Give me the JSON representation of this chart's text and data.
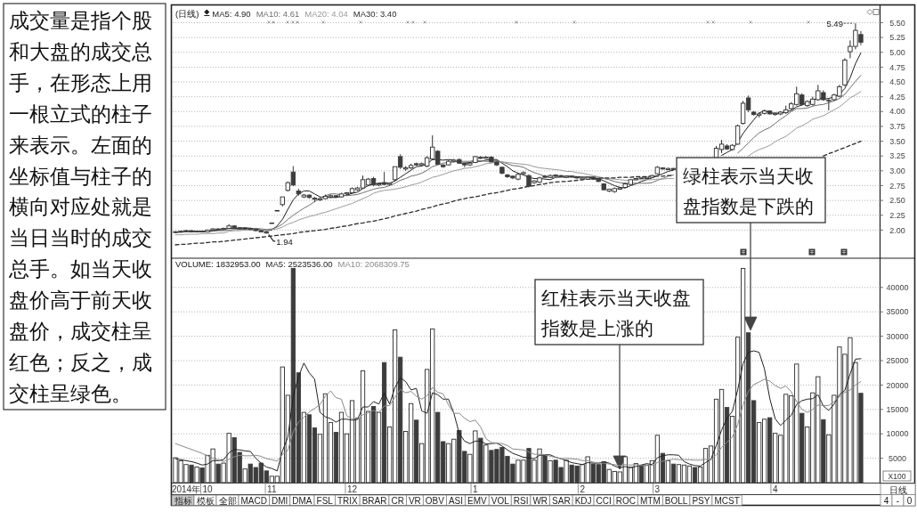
{
  "chart_data": [
    {
      "type": "other",
      "annotations": [
        "成交量是指个股和大盘的成交总手，在形态上用一根立式的柱子来表示。左面的坐标值与柱子的横向对应处就是当日当时的成交总手。如当天收盘价高于前天收盘价，成交柱呈红色；反之，成交柱呈绿色。"
      ]
    },
    {
      "type": "candlestick",
      "title": "(日线)",
      "tick_labels": "y",
      "grid": "y",
      "legend": "top left",
      "ylim": [
        1.54,
        5.8
      ],
      "yticks": [
        {
          "value": 2,
          "label": "2.00"
        },
        2.25,
        {
          "value": 2.5,
          "label": "2.50"
        },
        2.75,
        {
          "value": 3,
          "label": "3.00"
        },
        3.25,
        {
          "value": 3.5,
          "label": "3.50"
        },
        3.75,
        {
          "value": 4,
          "label": "4.00"
        },
        4.25,
        {
          "value": 4.5,
          "label": "4.50"
        },
        4.75,
        {
          "value": 5,
          "label": "5.00"
        },
        5.25,
        {
          "value": 5.5,
          "label": "5.50"
        }
      ],
      "categories": [
        null,
        null,
        null,
        null,
        null,
        null,
        null,
        null,
        null,
        null,
        null,
        null,
        null,
        null,
        null,
        null,
        null,
        null,
        null,
        null,
        null,
        null,
        null,
        null,
        null,
        null,
        null,
        null,
        null,
        null,
        null,
        null,
        null,
        null,
        null,
        null,
        null,
        null,
        null,
        null,
        null,
        null,
        null,
        null,
        null,
        null,
        null,
        null,
        null,
        null,
        null,
        null,
        null,
        null,
        null,
        null,
        null,
        null,
        null,
        null,
        null,
        null,
        null,
        null,
        null,
        null,
        null,
        null,
        null,
        null,
        null,
        null,
        null,
        null,
        null,
        null,
        null,
        null,
        null,
        null,
        null,
        null,
        null,
        null,
        null,
        null,
        null,
        null,
        null,
        null,
        null,
        null,
        null,
        null,
        null,
        null,
        null,
        null,
        null,
        null,
        null,
        null,
        null,
        null,
        null,
        null,
        null,
        null,
        null,
        null,
        null,
        null,
        null,
        null,
        null,
        null,
        null,
        null,
        null,
        null,
        null,
        null,
        null,
        null,
        null,
        null,
        null,
        null,
        null
      ],
      "ohlc": [
        [
          1.96,
          1.98,
          1.95,
          1.97
        ],
        [
          1.97,
          1.99,
          1.96,
          1.98
        ],
        [
          1.98,
          2.0,
          1.97,
          1.99
        ],
        [
          1.99,
          2.0,
          1.96,
          1.97
        ],
        [
          1.97,
          1.99,
          1.96,
          1.98
        ],
        [
          1.98,
          1.99,
          1.96,
          1.97
        ],
        [
          1.97,
          2.01,
          1.97,
          2.0
        ],
        [
          2.0,
          2.03,
          1.99,
          2.02
        ],
        [
          2.02,
          2.03,
          2.0,
          2.01
        ],
        [
          2.01,
          2.04,
          2.0,
          2.03
        ],
        [
          2.03,
          2.1,
          2.02,
          2.07
        ],
        [
          2.07,
          2.08,
          2.03,
          2.04
        ],
        [
          2.04,
          2.05,
          2.01,
          2.02
        ],
        [
          2.02,
          2.04,
          2.01,
          2.03
        ],
        [
          2.03,
          2.04,
          2.0,
          2.01
        ],
        [
          2.01,
          2.02,
          1.98,
          1.99
        ],
        [
          1.99,
          2.0,
          1.96,
          1.97
        ],
        [
          1.97,
          1.98,
          1.94,
          1.95
        ],
        [
          2.12,
          2.12,
          2.12,
          2.12
        ],
        [
          2.33,
          2.33,
          2.33,
          2.33
        ],
        [
          2.43,
          2.56,
          2.4,
          2.56
        ],
        [
          2.67,
          2.82,
          2.65,
          2.8
        ],
        [
          2.98,
          3.08,
          2.74,
          2.76
        ],
        [
          2.66,
          2.7,
          2.58,
          2.61
        ],
        [
          2.56,
          2.61,
          2.54,
          2.59
        ],
        [
          2.59,
          2.6,
          2.53,
          2.55
        ],
        [
          2.54,
          2.56,
          2.47,
          2.52
        ],
        [
          2.51,
          2.55,
          2.49,
          2.53
        ],
        [
          2.53,
          2.6,
          2.52,
          2.57
        ],
        [
          2.56,
          2.6,
          2.54,
          2.58
        ],
        [
          2.58,
          2.59,
          2.54,
          2.56
        ],
        [
          2.56,
          2.63,
          2.55,
          2.61
        ],
        [
          2.61,
          2.64,
          2.59,
          2.63
        ],
        [
          2.63,
          2.72,
          2.62,
          2.7
        ],
        [
          2.68,
          2.73,
          2.66,
          2.71
        ],
        [
          2.71,
          2.92,
          2.7,
          2.85
        ],
        [
          2.76,
          2.88,
          2.74,
          2.86
        ],
        [
          2.87,
          2.9,
          2.74,
          2.76
        ],
        [
          2.76,
          2.8,
          2.74,
          2.78
        ],
        [
          2.8,
          2.98,
          2.76,
          2.77
        ],
        [
          2.77,
          2.8,
          2.75,
          2.79
        ],
        [
          2.85,
          3.07,
          2.82,
          3.07
        ],
        [
          3.24,
          3.28,
          3.03,
          3.06
        ],
        [
          3.03,
          3.08,
          3.0,
          3.05
        ],
        [
          3.05,
          3.12,
          3.03,
          3.09
        ],
        [
          3.12,
          3.14,
          3.08,
          3.1
        ],
        [
          3.1,
          3.14,
          3.08,
          3.12
        ],
        [
          3.08,
          3.25,
          3.06,
          3.22
        ],
        [
          3.2,
          3.6,
          3.18,
          3.4
        ],
        [
          3.33,
          3.35,
          3.1,
          3.11
        ],
        [
          3.1,
          3.11,
          3.05,
          3.07
        ],
        [
          3.1,
          3.18,
          3.09,
          3.16
        ],
        [
          3.16,
          3.2,
          3.14,
          3.18
        ],
        [
          3.19,
          3.21,
          3.12,
          3.13
        ],
        [
          3.13,
          3.14,
          3.06,
          3.1
        ],
        [
          3.1,
          3.15,
          3.08,
          3.13
        ],
        [
          3.14,
          3.25,
          3.13,
          3.24
        ],
        [
          3.23,
          3.25,
          3.2,
          3.21
        ],
        [
          3.21,
          3.25,
          3.2,
          3.23
        ],
        [
          3.23,
          3.25,
          3.14,
          3.15
        ],
        [
          3.15,
          3.16,
          3.08,
          3.1
        ],
        [
          3.06,
          3.07,
          2.94,
          2.96
        ],
        [
          2.93,
          2.95,
          2.88,
          2.9
        ],
        [
          2.91,
          2.92,
          2.86,
          2.88
        ],
        [
          2.86,
          2.95,
          2.84,
          2.94
        ],
        [
          2.95,
          2.99,
          2.94,
          2.97
        ],
        [
          2.92,
          2.94,
          2.72,
          2.74
        ],
        [
          2.8,
          2.84,
          2.78,
          2.83
        ],
        [
          2.81,
          2.9,
          2.8,
          2.88
        ],
        [
          2.91,
          2.93,
          2.88,
          2.89
        ],
        [
          2.89,
          2.94,
          2.88,
          2.92
        ],
        [
          2.93,
          2.94,
          2.9,
          2.91
        ],
        [
          2.92,
          2.93,
          2.9,
          2.91
        ],
        [
          2.89,
          2.92,
          2.88,
          2.91
        ],
        [
          2.91,
          2.92,
          2.89,
          2.9
        ],
        [
          2.9,
          2.91,
          2.87,
          2.88
        ],
        [
          2.86,
          2.89,
          2.84,
          2.88
        ],
        [
          2.86,
          2.9,
          2.85,
          2.89
        ],
        [
          2.89,
          2.9,
          2.85,
          2.86
        ],
        [
          2.86,
          2.87,
          2.81,
          2.82
        ],
        [
          2.78,
          2.79,
          2.67,
          2.68
        ],
        [
          2.66,
          2.7,
          2.64,
          2.69
        ],
        [
          2.65,
          2.72,
          2.63,
          2.7
        ],
        [
          2.69,
          2.73,
          2.68,
          2.71
        ],
        [
          2.72,
          2.8,
          2.71,
          2.78
        ],
        [
          2.77,
          2.86,
          2.76,
          2.85
        ],
        [
          2.85,
          2.88,
          2.84,
          2.87
        ],
        [
          2.88,
          2.89,
          2.86,
          2.87
        ],
        [
          2.87,
          2.9,
          2.86,
          2.89
        ],
        [
          2.89,
          2.93,
          2.88,
          2.92
        ],
        [
          2.95,
          3.08,
          2.94,
          3.06
        ],
        [
          3.05,
          3.06,
          3.02,
          3.03
        ],
        [
          3.02,
          3.05,
          3.01,
          3.04
        ],
        [
          3.04,
          3.05,
          3.01,
          3.02
        ],
        null,
        null,
        null,
        null,
        null,
        null,
        null,
        [
          3.22,
          3.42,
          3.2,
          3.38
        ],
        [
          3.36,
          3.52,
          3.3,
          3.45
        ],
        [
          3.42,
          3.45,
          3.35,
          3.37
        ],
        [
          3.36,
          3.45,
          3.34,
          3.43
        ],
        [
          3.45,
          3.78,
          3.44,
          3.76
        ],
        [
          3.8,
          4.18,
          3.78,
          4.14
        ],
        [
          4.23,
          4.27,
          3.99,
          4.03
        ],
        [
          3.99,
          4.01,
          3.93,
          3.95
        ],
        [
          3.94,
          3.99,
          3.9,
          3.96
        ],
        [
          3.97,
          4.03,
          3.95,
          4.01
        ],
        [
          4.01,
          4.02,
          3.95,
          3.96
        ],
        [
          3.95,
          3.99,
          3.93,
          3.97
        ],
        [
          3.96,
          4.01,
          3.94,
          3.99
        ],
        [
          3.98,
          4.1,
          3.96,
          4.03
        ],
        [
          4.05,
          4.16,
          4.03,
          4.13
        ],
        [
          4.12,
          4.42,
          4.1,
          4.3
        ],
        [
          4.28,
          4.31,
          4.1,
          4.12
        ],
        [
          4.1,
          4.19,
          4.08,
          4.17
        ],
        [
          4.12,
          4.25,
          4.1,
          4.21
        ],
        [
          4.2,
          4.45,
          4.18,
          4.35
        ],
        [
          4.32,
          4.36,
          4.18,
          4.2
        ],
        [
          4.18,
          4.22,
          4.02,
          4.19
        ],
        [
          4.2,
          4.3,
          4.18,
          4.28
        ],
        [
          4.26,
          4.45,
          4.24,
          4.42
        ],
        [
          4.45,
          4.9,
          4.43,
          4.87
        ],
        [
          5.01,
          5.2,
          4.9,
          5.1
        ],
        [
          5.1,
          5.49,
          5.05,
          5.37
        ],
        [
          5.3,
          5.36,
          5.12,
          5.17
        ]
      ],
      "colors": [
        "#ffffff",
        "#ffffff",
        "#ffffff",
        "#3c3c3c",
        "#ffffff",
        "#3c3c3c",
        "#ffffff",
        "#ffffff",
        "#3c3c3c",
        "#ffffff",
        "#ffffff",
        "#3c3c3c",
        "#3c3c3c",
        "#ffffff",
        "#3c3c3c",
        "#3c3c3c",
        "#3c3c3c",
        "#3c3c3c",
        "#ffffff",
        "#ffffff",
        "#ffffff",
        "#ffffff",
        "#3c3c3c",
        "#3c3c3c",
        "#ffffff",
        "#3c3c3c",
        "#3c3c3c",
        "#ffffff",
        "#ffffff",
        "#ffffff",
        "#3c3c3c",
        "#ffffff",
        "#ffffff",
        "#ffffff",
        "#ffffff",
        "#ffffff",
        "#ffffff",
        "#3c3c3c",
        "#ffffff",
        "#3c3c3c",
        "#ffffff",
        "#ffffff",
        "#3c3c3c",
        "#ffffff",
        "#ffffff",
        "#3c3c3c",
        "#ffffff",
        "#ffffff",
        "#ffffff",
        "#3c3c3c",
        "#3c3c3c",
        "#ffffff",
        "#ffffff",
        "#3c3c3c",
        "#3c3c3c",
        "#ffffff",
        "#ffffff",
        "#3c3c3c",
        "#ffffff",
        "#3c3c3c",
        "#3c3c3c",
        "#3c3c3c",
        "#3c3c3c",
        "#3c3c3c",
        "#ffffff",
        "#ffffff",
        "#3c3c3c",
        "#ffffff",
        "#ffffff",
        "#3c3c3c",
        "#ffffff",
        "#3c3c3c",
        "#3c3c3c",
        "#ffffff",
        "#3c3c3c",
        "#3c3c3c",
        "#ffffff",
        "#ffffff",
        "#3c3c3c",
        "#3c3c3c",
        "#3c3c3c",
        "#ffffff",
        "#ffffff",
        "#ffffff",
        "#ffffff",
        "#ffffff",
        "#ffffff",
        "#3c3c3c",
        "#ffffff",
        "#ffffff",
        "#ffffff",
        "#3c3c3c",
        "#ffffff",
        "#3c3c3c",
        null,
        null,
        null,
        null,
        null,
        null,
        null,
        "#ffffff",
        "#ffffff",
        "#3c3c3c",
        "#ffffff",
        "#ffffff",
        "#ffffff",
        "#3c3c3c",
        "#3c3c3c",
        "#ffffff",
        "#ffffff",
        "#3c3c3c",
        "#ffffff",
        "#ffffff",
        "#ffffff",
        "#ffffff",
        "#ffffff",
        "#3c3c3c",
        "#ffffff",
        "#ffffff",
        "#ffffff",
        "#3c3c3c",
        "#ffffff",
        "#ffffff",
        "#ffffff",
        "#ffffff",
        "#ffffff",
        "#ffffff",
        "#3c3c3c"
      ],
      "series": [
        {
          "type": "line",
          "name": "MA5: 4.90",
          "color": "#1e1e1e",
          "values": [
            1.97,
            1.97,
            1.98,
            1.98,
            1.98,
            1.98,
            1.98,
            1.99,
            2.0,
            2.01,
            2.03,
            2.03,
            2.03,
            2.04,
            2.03,
            2.02,
            2.0,
            1.99,
            2.0,
            2.07,
            2.18,
            2.35,
            2.51,
            2.61,
            2.66,
            2.66,
            2.61,
            2.56,
            2.55,
            2.55,
            2.55,
            2.57,
            2.59,
            2.62,
            2.64,
            2.7,
            2.75,
            2.78,
            2.79,
            2.8,
            2.79,
            2.83,
            2.89,
            2.95,
            3.01,
            3.07,
            3.08,
            3.12,
            3.19,
            3.19,
            3.18,
            3.19,
            3.18,
            3.13,
            3.13,
            3.14,
            3.16,
            3.16,
            3.18,
            3.19,
            3.19,
            3.13,
            3.07,
            3.0,
            2.96,
            2.93,
            2.89,
            2.87,
            2.87,
            2.86,
            2.85,
            2.89,
            2.9,
            2.91,
            2.91,
            2.9,
            2.9,
            2.89,
            2.88,
            2.87,
            2.83,
            2.79,
            2.75,
            2.72,
            2.71,
            2.75,
            2.78,
            2.82,
            2.85,
            2.88,
            2.92,
            2.95,
            2.99,
            3.01,
            null,
            null,
            null,
            null,
            null,
            null,
            null,
            null,
            3.26,
            3.31,
            3.36,
            3.48,
            3.63,
            3.75,
            3.86,
            3.97,
            4.02,
            3.98,
            3.97,
            3.98,
            3.99,
            4.02,
            4.08,
            4.11,
            4.15,
            4.19,
            4.23,
            4.21,
            4.22,
            4.25,
            4.29,
            4.39,
            4.57,
            4.81,
            4.99
          ]
        },
        {
          "type": "line",
          "name": "MA10: 4.61",
          "color": "#6e6e6e",
          "values": [
            1.96,
            1.96,
            1.97,
            1.97,
            1.97,
            1.97,
            1.97,
            1.98,
            1.99,
            1.99,
            2.0,
            2.01,
            2.01,
            2.02,
            2.02,
            2.03,
            2.02,
            2.01,
            2.02,
            2.05,
            2.1,
            2.18,
            2.25,
            2.31,
            2.37,
            2.42,
            2.48,
            2.54,
            2.58,
            2.61,
            2.61,
            2.59,
            2.58,
            2.59,
            2.6,
            2.63,
            2.66,
            2.69,
            2.71,
            2.72,
            2.75,
            2.79,
            2.84,
            2.87,
            2.91,
            2.93,
            2.96,
            3.01,
            3.07,
            3.1,
            3.13,
            3.14,
            3.15,
            3.16,
            3.16,
            3.16,
            3.18,
            3.17,
            3.16,
            3.16,
            3.17,
            3.15,
            3.12,
            3.09,
            3.08,
            3.06,
            3.01,
            2.97,
            2.94,
            2.91,
            2.89,
            2.89,
            2.89,
            2.89,
            2.89,
            2.88,
            2.9,
            2.9,
            2.9,
            2.89,
            2.87,
            2.85,
            2.82,
            2.8,
            2.79,
            2.79,
            2.79,
            2.79,
            2.79,
            2.8,
            2.84,
            2.87,
            2.91,
            2.93,
            null,
            null,
            null,
            null,
            null,
            null,
            null,
            null,
            null,
            null,
            null,
            3.3,
            3.38,
            3.47,
            3.56,
            3.64,
            3.69,
            3.73,
            3.8,
            3.87,
            3.93,
            4.0,
            4.05,
            4.05,
            4.06,
            4.09,
            4.11,
            4.12,
            4.15,
            4.18,
            4.22,
            4.29,
            4.4,
            4.51,
            4.61
          ]
        },
        {
          "type": "line",
          "name": "MA20: 4.04",
          "color": "#9a9a9a",
          "values": [
            1.92,
            1.92,
            1.93,
            1.93,
            1.93,
            1.94,
            1.94,
            1.94,
            1.95,
            1.95,
            1.98,
            1.99,
            1.99,
            2.0,
            2.0,
            2.0,
            2.0,
            2.0,
            2.01,
            2.02,
            2.05,
            2.1,
            2.13,
            2.17,
            2.2,
            2.23,
            2.25,
            2.28,
            2.3,
            2.33,
            2.36,
            2.39,
            2.42,
            2.45,
            2.49,
            2.53,
            2.57,
            2.62,
            2.65,
            2.67,
            2.68,
            2.69,
            2.71,
            2.73,
            2.76,
            2.78,
            2.81,
            2.85,
            2.89,
            2.91,
            2.94,
            2.97,
            3.0,
            3.02,
            3.04,
            3.05,
            3.07,
            3.09,
            3.12,
            3.13,
            3.15,
            3.15,
            3.14,
            3.13,
            3.12,
            3.11,
            3.1,
            3.07,
            3.05,
            3.04,
            3.03,
            3.02,
            3.01,
            2.99,
            2.99,
            2.97,
            2.96,
            2.94,
            2.92,
            2.9,
            2.88,
            2.87,
            2.86,
            2.85,
            2.84,
            2.84,
            2.85,
            2.85,
            2.85,
            2.85,
            2.86,
            2.86,
            2.87,
            2.87,
            null,
            null,
            null,
            null,
            null,
            null,
            null,
            null,
            null,
            null,
            null,
            null,
            null,
            3.25,
            3.31,
            3.36,
            3.39,
            3.43,
            3.49,
            3.54,
            3.58,
            3.65,
            3.72,
            3.76,
            3.81,
            3.87,
            3.9,
            3.93,
            3.98,
            4.03,
            4.08,
            4.15,
            4.23,
            4.28,
            4.34
          ]
        },
        {
          "type": "line",
          "name": "MA30: 3.40",
          "color": "#2b2b2b",
          "line_style": "dashed",
          "values": [
            1.75,
            1.76,
            1.76,
            1.77,
            1.78,
            1.78,
            1.79,
            1.8,
            1.8,
            1.81,
            1.82,
            1.83,
            1.84,
            1.85,
            1.86,
            1.87,
            1.88,
            1.89,
            1.9,
            1.91,
            1.92,
            1.93,
            1.94,
            1.96,
            1.97,
            1.98,
            1.99,
            2.0,
            2.01,
            2.03,
            2.04,
            2.06,
            2.07,
            2.09,
            2.11,
            2.12,
            2.14,
            2.15,
            2.17,
            2.19,
            2.21,
            2.24,
            2.26,
            2.28,
            2.3,
            2.32,
            2.35,
            2.37,
            2.39,
            2.42,
            2.44,
            2.46,
            2.49,
            2.51,
            2.53,
            2.55,
            2.56,
            2.58,
            2.6,
            2.62,
            2.63,
            2.65,
            2.67,
            2.69,
            2.7,
            2.72,
            2.74,
            2.75,
            2.77,
            2.78,
            2.8,
            2.81,
            2.82,
            2.82,
            2.83,
            2.84,
            2.85,
            2.86,
            2.86,
            2.87,
            2.88,
            2.88,
            2.88,
            2.89,
            2.89,
            2.89,
            2.9,
            2.9,
            2.9,
            2.91,
            2.91,
            2.91,
            2.92,
            2.92,
            null,
            null,
            null,
            null,
            null,
            null,
            null,
            null,
            null,
            null,
            null,
            null,
            null,
            null,
            null,
            null,
            null,
            null,
            null,
            null,
            null,
            null,
            null,
            null,
            null,
            null,
            null,
            3.25,
            3.29,
            3.32,
            3.36,
            3.39,
            3.43,
            3.46,
            3.5
          ]
        }
      ],
      "annotations": [
        "5.49",
        "1.94"
      ]
    },
    {
      "type": "bar",
      "title": "VOLUME: 1832953.00",
      "grid": "y",
      "legend": "top left",
      "ylabel": "X100",
      "ylim": [
        0,
        45800
      ],
      "yticks": [
        5000,
        10000,
        15000,
        20000,
        25000,
        30000,
        35000,
        40000
      ],
      "categories": [
        null,
        null,
        "2014年",
        null,
        null,
        null,
        "10",
        null,
        null,
        null,
        null,
        null,
        null,
        null,
        null,
        null,
        null,
        null,
        "11",
        null,
        null,
        null,
        null,
        null,
        null,
        null,
        null,
        null,
        null,
        null,
        null,
        null,
        null,
        "12",
        null,
        null,
        null,
        null,
        null,
        null,
        null,
        null,
        null,
        null,
        null,
        null,
        null,
        null,
        null,
        null,
        null,
        null,
        null,
        null,
        null,
        null,
        "1",
        null,
        null,
        null,
        null,
        null,
        null,
        null,
        null,
        null,
        null,
        null,
        null,
        null,
        null,
        null,
        null,
        null,
        null,
        null,
        "2",
        null,
        null,
        null,
        null,
        null,
        null,
        null,
        null,
        null,
        null,
        null,
        null,
        null,
        "3",
        null,
        null,
        null,
        null,
        null,
        null,
        null,
        null,
        null,
        null,
        null,
        null,
        null,
        null,
        null,
        null,
        null,
        null,
        null,
        null,
        null,
        "4",
        null,
        null,
        null,
        null,
        null,
        null,
        null,
        null,
        null,
        null,
        null,
        null,
        null,
        null,
        null,
        null
      ],
      "series": [
        {
          "type": "bar",
          "values": [
            5100,
            4500,
            3700,
            3600,
            3200,
            3000,
            5600,
            6900,
            3800,
            4000,
            10100,
            9200,
            6200,
            2800,
            3800,
            3100,
            4000,
            2400,
            1300,
            1300,
            23700,
            17900,
            43900,
            22500,
            14400,
            13900,
            11200,
            9900,
            18200,
            12300,
            10300,
            14400,
            10000,
            16800,
            13200,
            22900,
            14600,
            15600,
            14400,
            24600,
            11400,
            31300,
            25700,
            10500,
            16200,
            12800,
            8000,
            23200,
            31500,
            14400,
            8400,
            8000,
            8900,
            10700,
            6400,
            5800,
            10600,
            9100,
            7700,
            6600,
            6800,
            7200,
            5400,
            3800,
            4600,
            4600,
            7000,
            4600,
            6900,
            5600,
            4500,
            4600,
            3100,
            4600,
            3600,
            3400,
            3700,
            5300,
            3800,
            3700,
            4300,
            2700,
            2300,
            2200,
            5300,
            3100,
            3900,
            3600,
            3600,
            4500,
            9700,
            6000,
            4500,
            3800,
            3700,
            3600,
            3400,
            3100,
            3200,
            7000,
            7500,
            17100,
            19100,
            15400,
            13600,
            29800,
            43900,
            30700,
            16800,
            12300,
            13000,
            13300,
            10100,
            9700,
            18100,
            17800,
            24300,
            14200,
            11400,
            18400,
            21700,
            12900,
            9800,
            17900,
            27800,
            26300,
            29700,
            24600,
            18300
          ],
          "colors": [
            "#ffffff",
            "#ffffff",
            "#ffffff",
            "#3c3c3c",
            "#ffffff",
            "#3c3c3c",
            "#ffffff",
            "#ffffff",
            "#3c3c3c",
            "#ffffff",
            "#ffffff",
            "#3c3c3c",
            "#3c3c3c",
            "#ffffff",
            "#3c3c3c",
            "#3c3c3c",
            "#3c3c3c",
            "#3c3c3c",
            "#ffffff",
            "#ffffff",
            "#ffffff",
            "#ffffff",
            "#3c3c3c",
            "#3c3c3c",
            "#ffffff",
            "#3c3c3c",
            "#3c3c3c",
            "#ffffff",
            "#ffffff",
            "#ffffff",
            "#3c3c3c",
            "#ffffff",
            "#ffffff",
            "#ffffff",
            "#ffffff",
            "#ffffff",
            "#ffffff",
            "#3c3c3c",
            "#ffffff",
            "#3c3c3c",
            "#ffffff",
            "#ffffff",
            "#3c3c3c",
            "#ffffff",
            "#ffffff",
            "#3c3c3c",
            "#ffffff",
            "#ffffff",
            "#ffffff",
            "#3c3c3c",
            "#3c3c3c",
            "#ffffff",
            "#ffffff",
            "#3c3c3c",
            "#3c3c3c",
            "#ffffff",
            "#ffffff",
            "#3c3c3c",
            "#ffffff",
            "#3c3c3c",
            "#3c3c3c",
            "#3c3c3c",
            "#3c3c3c",
            "#3c3c3c",
            "#ffffff",
            "#ffffff",
            "#3c3c3c",
            "#ffffff",
            "#ffffff",
            "#3c3c3c",
            "#ffffff",
            "#3c3c3c",
            "#3c3c3c",
            "#ffffff",
            "#3c3c3c",
            "#3c3c3c",
            "#ffffff",
            "#ffffff",
            "#3c3c3c",
            "#3c3c3c",
            "#3c3c3c",
            "#ffffff",
            "#ffffff",
            "#ffffff",
            "#ffffff",
            "#ffffff",
            "#ffffff",
            "#3c3c3c",
            "#ffffff",
            "#ffffff",
            "#ffffff",
            "#3c3c3c",
            "#ffffff",
            "#3c3c3c",
            "#ffffff",
            "#ffffff",
            "#ffffff",
            "#3c3c3c",
            "#ffffff",
            "#ffffff",
            "#ffffff",
            "#ffffff",
            "#ffffff",
            "#3c3c3c",
            "#ffffff",
            "#ffffff",
            "#ffffff",
            "#3c3c3c",
            "#3c3c3c",
            "#ffffff",
            "#ffffff",
            "#3c3c3c",
            "#ffffff",
            "#ffffff",
            "#ffffff",
            "#ffffff",
            "#ffffff",
            "#3c3c3c",
            "#ffffff",
            "#ffffff",
            "#ffffff",
            "#3c3c3c",
            "#ffffff",
            "#ffffff",
            "#ffffff",
            "#ffffff",
            "#ffffff",
            "#ffffff",
            "#3c3c3c"
          ]
        },
        {
          "type": "line",
          "name": "MA5: 2523536.00",
          "color": "#222222",
          "values": [
            4900,
            4700,
            4500,
            4300,
            4000,
            3600,
            3800,
            4500,
            4500,
            4700,
            6100,
            6800,
            6700,
            6500,
            6400,
            5000,
            4000,
            3200,
            2900,
            2400,
            6500,
            9300,
            17600,
            21800,
            24500,
            22500,
            21200,
            14400,
            13500,
            13100,
            12400,
            13000,
            13000,
            12800,
            12900,
            15500,
            15500,
            16600,
            16100,
            18400,
            16100,
            19500,
            21500,
            20700,
            19000,
            19300,
            14700,
            14200,
            18400,
            18000,
            17100,
            17100,
            14200,
            10100,
            8500,
            8000,
            8500,
            8500,
            7900,
            8000,
            8100,
            7500,
            6700,
            6000,
            5600,
            5200,
            5100,
            4900,
            5600,
            5700,
            5700,
            5200,
            4900,
            4500,
            4100,
            3900,
            3700,
            4100,
            4000,
            4000,
            4200,
            4000,
            3400,
            3000,
            3300,
            3100,
            3300,
            3600,
            3900,
            3700,
            5100,
            5500,
            5700,
            5700,
            5600,
            4300,
            3800,
            3500,
            3400,
            4100,
            4800,
            7600,
            10800,
            13200,
            14600,
            19000,
            24400,
            26700,
            27000,
            26700,
            23300,
            17200,
            13100,
            11700,
            12800,
            13800,
            16000,
            16800,
            17100,
            17200,
            18000,
            15700,
            14800,
            16100,
            18000,
            18900,
            22300,
            25300,
            25400
          ]
        },
        {
          "type": "line",
          "name": "MA10: 2068309.75",
          "color": "#8a8a8a",
          "values": [
            8000,
            7600,
            7200,
            6800,
            6400,
            6000,
            5500,
            5000,
            4700,
            4300,
            4800,
            5300,
            5600,
            5500,
            5500,
            5600,
            5400,
            4900,
            4700,
            4400,
            5800,
            6600,
            10400,
            12400,
            13400,
            14500,
            15200,
            16000,
            17700,
            18800,
            17400,
            17100,
            13700,
            13100,
            13000,
            13900,
            14300,
            14800,
            14400,
            15700,
            15800,
            17500,
            19100,
            18400,
            18700,
            17700,
            17100,
            17800,
            19500,
            18500,
            18200,
            15900,
            14200,
            14200,
            13200,
            12500,
            12800,
            11400,
            9000,
            8200,
            8100,
            8000,
            7600,
            6900,
            6800,
            6700,
            6300,
            5800,
            5800,
            5700,
            5400,
            5200,
            4900,
            5000,
            4900,
            4800,
            4500,
            4500,
            4200,
            4000,
            4000,
            3800,
            3700,
            3500,
            3700,
            3600,
            3700,
            3500,
            3500,
            3500,
            4100,
            4400,
            4600,
            4800,
            4700,
            4700,
            4700,
            4600,
            4600,
            4800,
            4600,
            5700,
            7200,
            8300,
            9300,
            11900,
            16000,
            18700,
            20100,
            20600,
            21200,
            20800,
            19900,
            19300,
            19800,
            18600,
            16600,
            15000,
            14400,
            15000,
            15900,
            15800,
            15800,
            16600,
            17600,
            18500,
            19000,
            20000,
            20700
          ]
        }
      ],
      "annotations": [
        "绿柱表示当天收盘指数是下跌的",
        "红柱表示当天收盘指数是上涨的"
      ]
    },
    {
      "type": "other",
      "annotations": [
        "指标",
        "模板",
        "全部",
        "MACD",
        "DMI",
        "DMA",
        "FSL",
        "TRIX",
        "BRAR",
        "CR",
        "VR",
        "OBV",
        "ASI",
        "EMV",
        "VOL",
        "RSI",
        "WR",
        "SAR",
        "KDJ",
        "CCI",
        "ROC",
        "MTM",
        "BOLL",
        "PSY",
        "MCST"
      ]
    },
    {
      "type": "other",
      "annotations": [
        "日线",
        "4",
        "-",
        "0"
      ]
    }
  ]
}
